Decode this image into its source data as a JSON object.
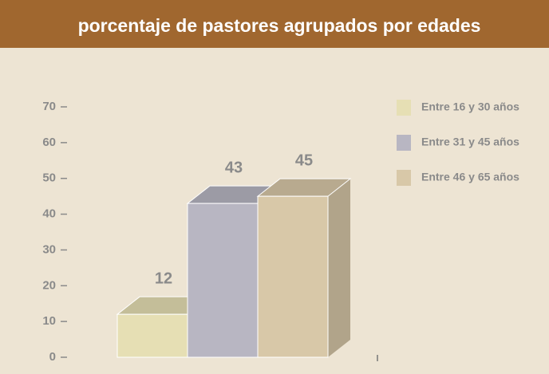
{
  "chart_data": {
    "type": "bar3d",
    "title": "porcentaje de pastores agrupados por edades",
    "series": [
      {
        "name": "Entre 16 y 30 años",
        "color": "#e6dfb4",
        "values": [
          12
        ]
      },
      {
        "name": "Entre 31 y 45 años",
        "color": "#b8b6c2",
        "values": [
          43
        ]
      },
      {
        "name": "Entre 46 y 65 años",
        "color": "#d8c8a8",
        "values": [
          45
        ]
      }
    ],
    "ylim": [
      0,
      70
    ],
    "yticks": [
      0,
      10,
      20,
      30,
      40,
      50,
      60,
      70
    ],
    "legend": "right"
  }
}
